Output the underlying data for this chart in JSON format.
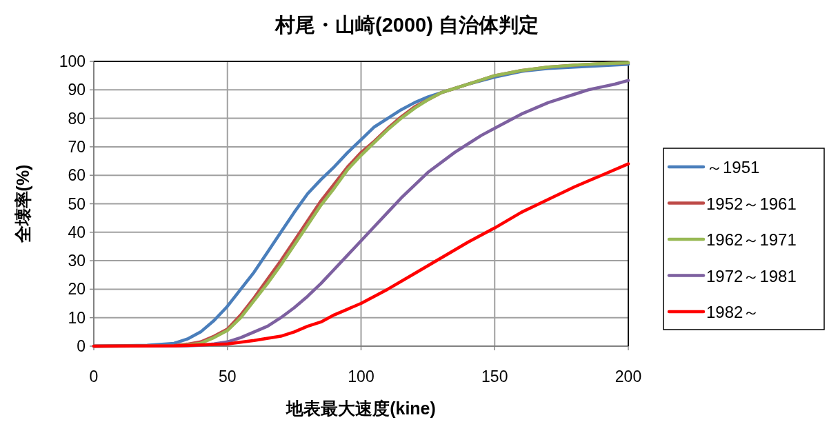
{
  "chart_data": {
    "type": "line",
    "title": "村尾・山崎(2000)  自治体判定",
    "xlabel": "地表最大速度(kine)",
    "ylabel": "全壊率(%)",
    "xlim": [
      0,
      200
    ],
    "xticks": [
      0,
      50,
      100,
      150,
      200
    ],
    "ylim": [
      0,
      100
    ],
    "yticks": [
      0,
      10,
      20,
      30,
      40,
      50,
      60,
      70,
      80,
      90,
      100
    ],
    "grid": true,
    "legend": "right",
    "marker": "none",
    "line_style": "solid",
    "series": [
      {
        "name": "～1951",
        "color": "#4a7ebb",
        "x": [
          0,
          20,
          30,
          35,
          40,
          45,
          50,
          55,
          60,
          65,
          70,
          75,
          80,
          85,
          90,
          95,
          100,
          105,
          110,
          115,
          120,
          125,
          130,
          140,
          150,
          160,
          170,
          180,
          190,
          200
        ],
        "values": [
          0,
          0.3,
          1,
          2.5,
          5,
          9,
          14,
          20,
          26,
          33,
          40,
          47,
          53.5,
          58.5,
          63,
          68,
          72.5,
          77,
          80,
          83,
          85.5,
          87.5,
          89,
          92,
          94.5,
          96.5,
          97.5,
          98,
          98.5,
          99
        ]
      },
      {
        "name": "1952～1961",
        "color": "#be4b48",
        "x": [
          0,
          30,
          35,
          40,
          45,
          50,
          55,
          60,
          65,
          70,
          75,
          80,
          85,
          90,
          95,
          100,
          105,
          110,
          115,
          120,
          125,
          130,
          135,
          140,
          150,
          160,
          170,
          180,
          190,
          200
        ],
        "values": [
          0,
          0.2,
          0.7,
          1.5,
          3.5,
          6,
          11,
          17,
          23.5,
          30,
          37,
          44,
          51,
          57,
          63,
          68,
          72,
          76.5,
          80.5,
          84,
          86.5,
          89,
          90.5,
          92,
          95,
          96.8,
          98,
          98.7,
          99.2,
          99.5
        ]
      },
      {
        "name": "1962～1971",
        "color": "#98b954",
        "x": [
          0,
          30,
          35,
          40,
          45,
          50,
          55,
          60,
          65,
          70,
          75,
          80,
          85,
          90,
          95,
          100,
          105,
          110,
          115,
          120,
          125,
          130,
          135,
          140,
          150,
          160,
          170,
          180,
          190,
          200
        ],
        "values": [
          0,
          0.1,
          0.4,
          1,
          3,
          5.5,
          10,
          16,
          22,
          28.5,
          35.5,
          42.5,
          49.5,
          55.5,
          62,
          67,
          71.5,
          76,
          80,
          83.5,
          86.5,
          89,
          90.5,
          92,
          95,
          96.8,
          98,
          98.7,
          99.2,
          99.5
        ]
      },
      {
        "name": "1972～1981",
        "color": "#7d60a0",
        "x": [
          0,
          35,
          40,
          45,
          50,
          55,
          60,
          65,
          70,
          75,
          80,
          85,
          90,
          95,
          100,
          105,
          110,
          115,
          120,
          125,
          130,
          135,
          140,
          145,
          150,
          155,
          160,
          165,
          170,
          175,
          180,
          185,
          190,
          195,
          200
        ],
        "values": [
          0,
          0.1,
          0.3,
          0.8,
          1.5,
          3,
          5,
          7,
          10,
          13.5,
          17.5,
          22,
          27,
          32,
          37,
          42,
          47,
          52,
          56.5,
          61,
          64.5,
          68,
          71,
          74,
          76.5,
          79,
          81.5,
          83.5,
          85.5,
          87,
          88.5,
          90,
          91,
          92,
          93.3
        ]
      },
      {
        "name": "1982～",
        "color": "#ff0000",
        "x": [
          0,
          30,
          40,
          50,
          60,
          70,
          75,
          80,
          85,
          90,
          95,
          100,
          110,
          120,
          130,
          140,
          150,
          160,
          170,
          180,
          190,
          200
        ],
        "values": [
          0,
          0.1,
          0.4,
          0.8,
          2,
          3.5,
          5,
          7,
          8.5,
          11,
          13,
          15,
          20,
          25.5,
          31,
          36.5,
          41.5,
          47,
          51.5,
          56,
          60,
          64
        ]
      }
    ]
  }
}
